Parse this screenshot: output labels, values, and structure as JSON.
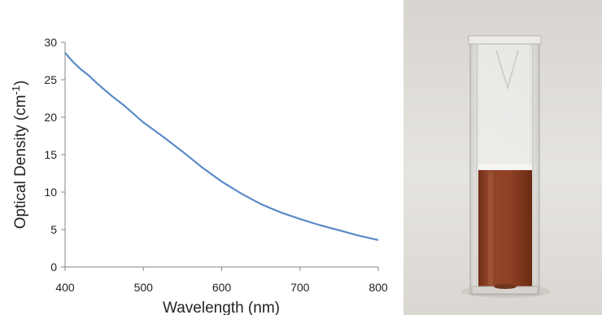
{
  "chart_data": {
    "type": "line",
    "xlabel": "Wavelength (nm)",
    "ylabel_main": "Optical Density (cm",
    "ylabel_sup": "-1",
    "ylabel_end": ")",
    "xlim": [
      400,
      800
    ],
    "ylim": [
      0,
      30
    ],
    "x_ticks": [
      400,
      500,
      600,
      700,
      800
    ],
    "y_ticks": [
      0,
      5,
      10,
      15,
      20,
      25,
      30
    ],
    "grid": false,
    "legend": "none",
    "series": [
      {
        "color": "#5b8ac7",
        "x": [
          400,
          410,
          420,
          430,
          440,
          450,
          460,
          475,
          500,
          525,
          550,
          575,
          600,
          625,
          650,
          675,
          700,
          725,
          750,
          775,
          800
        ],
        "y": [
          28.6,
          27.4,
          26.4,
          25.6,
          24.6,
          23.7,
          22.8,
          21.6,
          19.3,
          17.4,
          15.4,
          13.3,
          11.4,
          9.8,
          8.4,
          7.3,
          6.4,
          5.6,
          4.9,
          4.2,
          3.6
        ]
      }
    ]
  },
  "photo": {
    "subject": "cuvette-with-brown-liquid",
    "background_color": "#e3e1dd",
    "liquid_color": "#8a3e20"
  }
}
